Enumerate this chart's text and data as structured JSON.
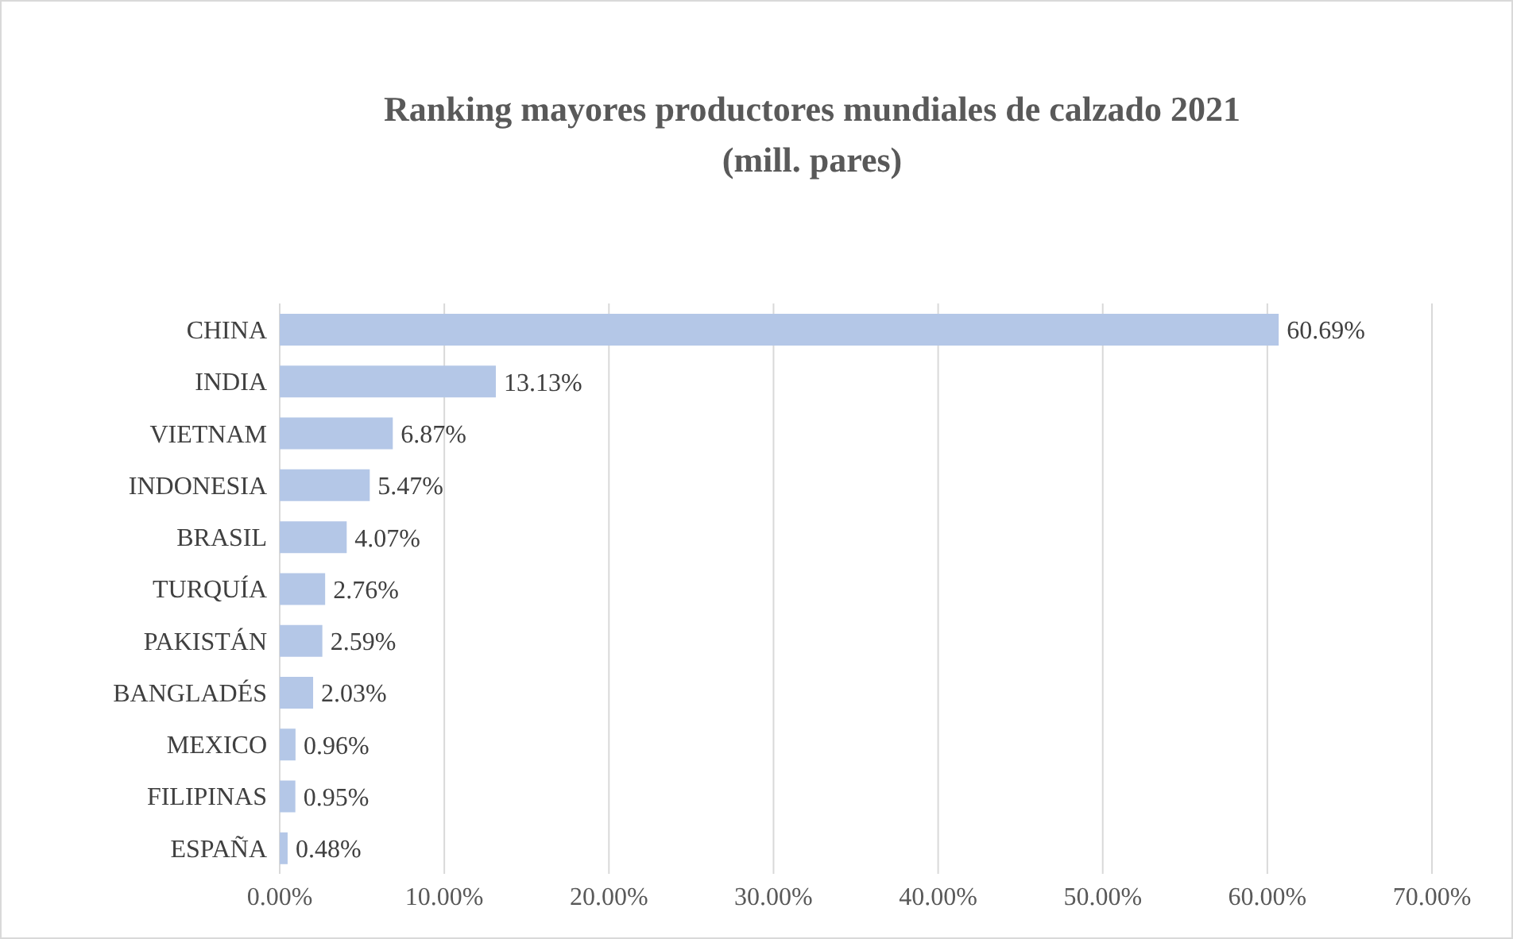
{
  "chart_data": {
    "type": "bar",
    "orientation": "horizontal",
    "title": "Ranking mayores productores mundiales de calzado 2021",
    "subtitle": "(mill.  pares)",
    "categories": [
      "CHINA",
      "INDIA",
      "VIETNAM",
      "INDONESIA",
      "BRASIL",
      "TURQUÍA",
      "PAKISTÁN",
      "BANGLADÉS",
      "MEXICO",
      "FILIPINAS",
      "ESPAÑA"
    ],
    "values": [
      60.69,
      13.13,
      6.87,
      5.47,
      4.07,
      2.76,
      2.59,
      2.03,
      0.96,
      0.95,
      0.48
    ],
    "value_labels": [
      "60.69%",
      "13.13%",
      "6.87%",
      "5.47%",
      "4.07%",
      "2.76%",
      "2.59%",
      "2.03%",
      "0.96%",
      "0.95%",
      "0.48%"
    ],
    "color": "#b4c7e7",
    "xlim": [
      0,
      70
    ],
    "xticks": [
      {
        "value": 0,
        "label": "0.00%"
      },
      {
        "value": 10,
        "label": "10.00%"
      },
      {
        "value": 20,
        "label": "20.00%"
      },
      {
        "value": 30,
        "label": "30.00%"
      },
      {
        "value": 40,
        "label": "40.00%"
      },
      {
        "value": 50,
        "label": "50.00%"
      },
      {
        "value": 60,
        "label": "60.00%"
      },
      {
        "value": 70,
        "label": "70.00%"
      }
    ],
    "grid": "x"
  }
}
